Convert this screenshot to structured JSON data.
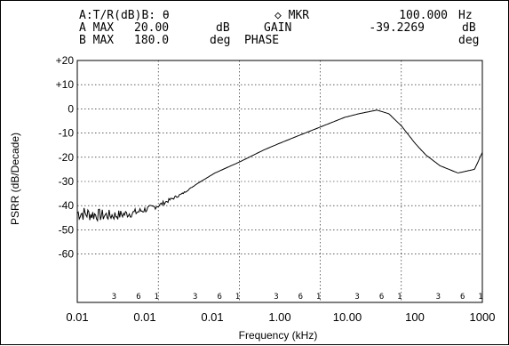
{
  "header": {
    "line1": {
      "left": "A:T/R(dB)B: θ",
      "marker": "◇ MKR",
      "value": "100.000",
      "unit": "Hz"
    },
    "line2": {
      "left_label": "A MAX",
      "left_value": "20.00",
      "left_unit": "dB",
      "param": "GAIN",
      "value": "-39.2269",
      "unit": "dB"
    },
    "line3": {
      "left_label": "B MAX",
      "left_value": "180.0",
      "left_unit": "deg",
      "param": "PHASE",
      "unit": "deg"
    }
  },
  "decade_marks": [
    "3",
    "6",
    "1"
  ],
  "colors": {
    "line": "#000000",
    "grid": "#000000",
    "background": "#ffffff"
  },
  "chart_data": {
    "type": "line",
    "title": "",
    "xlabel": "Frequency (kHz)",
    "ylabel": "PSRR (dB/Decade)",
    "xscale": "log",
    "xlim": [
      0.01,
      1000
    ],
    "ylim": [
      -80,
      20
    ],
    "grid": true,
    "x_tick_labels": [
      "0.01",
      "0.01",
      "0.01",
      "1.00",
      "10.00",
      "100",
      "1000"
    ],
    "y_tick_labels": [
      "+20",
      "+10",
      "0",
      "-10",
      "-20",
      "-30",
      "-40",
      "-50",
      "-60"
    ],
    "y_ticks": [
      20,
      10,
      0,
      -10,
      -20,
      -30,
      -40,
      -50,
      -60
    ],
    "series": [
      {
        "x": [
          0.01,
          0.02,
          0.03,
          0.05,
          0.08,
          0.1,
          0.2,
          0.3,
          0.5,
          1,
          2,
          3,
          5,
          10,
          20,
          30,
          50,
          70,
          100,
          150,
          200,
          300,
          500,
          800,
          1000
        ],
        "y": [
          -43,
          -44,
          -44,
          -43,
          -41,
          -40,
          -35,
          -31,
          -26.5,
          -22,
          -17,
          -14.5,
          -11.5,
          -7.5,
          -3.5,
          -2,
          -0.5,
          -2,
          -7,
          -14.5,
          -19,
          -23.5,
          -26.5,
          -25,
          -18
        ]
      }
    ]
  }
}
